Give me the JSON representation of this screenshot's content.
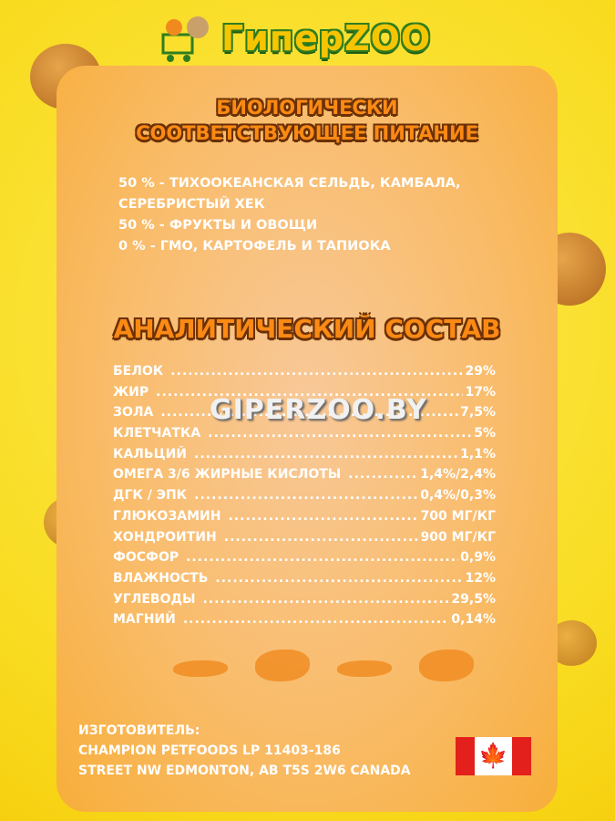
{
  "logo": {
    "text": "ГиперZOO"
  },
  "title_bio": [
    "БИОЛОГИЧЕСКИ",
    "СООТВЕТСТВУЮЩЕЕ ПИТАНИЕ"
  ],
  "composition": [
    "50 % - ТИХООКЕАНСКАЯ СЕЛЬДЬ, КАМБАЛА,",
    "СЕРЕБРИСТЫЙ ХЕК",
    "50 % - ФРУКТЫ И ОВОЩИ",
    "0 % - ГМО, КАРТОФЕЛЬ И ТАПИОКА"
  ],
  "title_analytic": "АНАЛИТИЧЕСКИЙ СОСТАВ",
  "analysis": [
    {
      "name": "БЕЛОК",
      "value": "29%"
    },
    {
      "name": "ЖИР",
      "value": "17%"
    },
    {
      "name": "ЗОЛА",
      "value": "7,5%"
    },
    {
      "name": "КЛЕТЧАТКА",
      "value": "5%"
    },
    {
      "name": "КАЛЬЦИЙ",
      "value": "1,1%"
    },
    {
      "name": "ОМЕГА 3/6 ЖИРНЫЕ КИСЛОТЫ",
      "value": "1,4%/2,4%"
    },
    {
      "name": "ДГК / ЭПК",
      "value": "0,4%/0,3%"
    },
    {
      "name": "ГЛЮКОЗАМИН",
      "value": "700 МГ/КГ"
    },
    {
      "name": "ХОНДРОИТИН",
      "value": "900 МГ/КГ"
    },
    {
      "name": "ФОСФОР",
      "value": "0,9%"
    },
    {
      "name": "ВЛАЖНОСТЬ",
      "value": "12%"
    },
    {
      "name": "УГЛЕВОДЫ",
      "value": "29,5%"
    },
    {
      "name": "МАГНИЙ",
      "value": "0,14%"
    }
  ],
  "watermark": "GIPERZOO.BY",
  "manufacturer": [
    "ИЗГОТОВИТЕЛЬ:",
    "CHAMPION PETFOODS LP 11403-186",
    "STREET NW EDMONTON, AB T5S 2W6 CANADA"
  ],
  "icons": {
    "flag": "canada-flag-icon",
    "fish": "fish-icons"
  },
  "colors": {
    "background": "#f9dc22",
    "title": "#fb8a14",
    "title_outline": "#6b3006",
    "logo_green": "#2f7d21"
  }
}
